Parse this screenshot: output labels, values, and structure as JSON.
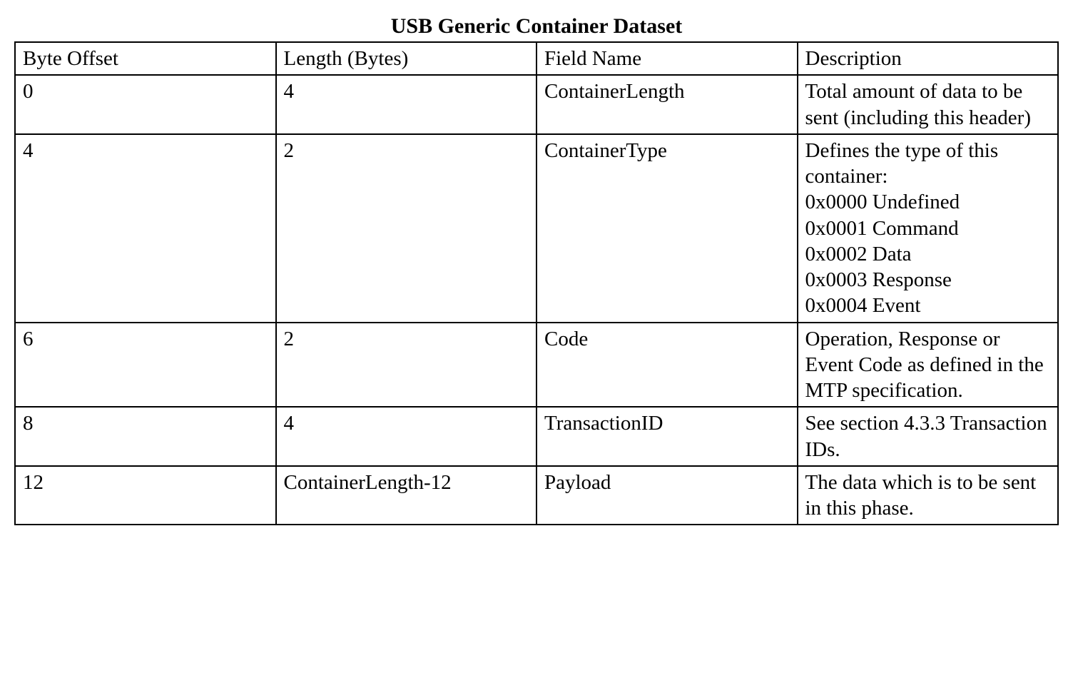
{
  "table": {
    "title": "USB Generic Container Dataset",
    "title_fontsize": 30,
    "cell_fontsize": 29,
    "background_color": "#ffffff",
    "text_color": "#000000",
    "border_color": "#000000",
    "border_width": 2,
    "font_family": "Times New Roman",
    "column_widths_pct": [
      25,
      25,
      25,
      25
    ],
    "columns": [
      "Byte Offset",
      "Length (Bytes)",
      "Field Name",
      "Description"
    ],
    "rows": [
      {
        "byte_offset": "0",
        "length": "4",
        "field_name": "ContainerLength",
        "description": "Total amount of data to be sent (including this header)"
      },
      {
        "byte_offset": "4",
        "length": "2",
        "field_name": "ContainerType",
        "description": "Defines the type of this container:\n0x0000 Undefined\n0x0001 Command\n0x0002 Data\n0x0003 Response\n0x0004 Event"
      },
      {
        "byte_offset": "6",
        "length": "2",
        "field_name": "Code",
        "description": "Operation, Response or Event Code as defined in the MTP specification."
      },
      {
        "byte_offset": "8",
        "length": "4",
        "field_name": "TransactionID",
        "description": "See section 4.3.3 Transaction IDs."
      },
      {
        "byte_offset": "12",
        "length": "ContainerLength-12",
        "field_name": "Payload",
        "description": "The data which is to be sent in this phase."
      }
    ]
  }
}
